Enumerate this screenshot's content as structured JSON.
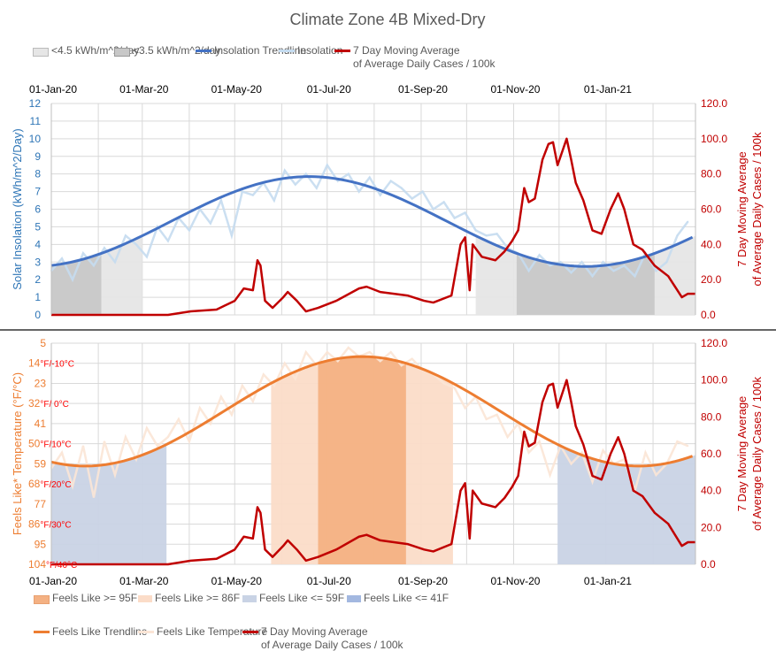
{
  "chart_data": [
    {
      "type": "line",
      "title": "Climate Zone 4B Mixed-Dry",
      "ylabel": "Solar Insolation (kWh/m^2/Day)",
      "y2label": "7 Day Moving Average of Average Daily Cases / 100k",
      "ylim": [
        0,
        12
      ],
      "y2lim": [
        0,
        120
      ],
      "y_ticks": [
        "0",
        "1",
        "2",
        "3",
        "4",
        "5",
        "6",
        "7",
        "8",
        "9",
        "10",
        "11",
        "12"
      ],
      "y2_ticks": [
        "0.0",
        "20.0",
        "40.0",
        "60.0",
        "80.0",
        "100.0",
        "120.0"
      ],
      "x_ticks": [
        {
          "day": 0,
          "label": "01-Jan-20"
        },
        {
          "day": 60,
          "label": "01-Mar-20"
        },
        {
          "day": 121,
          "label": "01-May-20"
        },
        {
          "day": 182,
          "label": "01-Jul-20"
        },
        {
          "day": 244,
          "label": "01-Sep-20"
        },
        {
          "day": 305,
          "label": "01-Nov-20"
        },
        {
          "day": 366,
          "label": "01-Jan-21"
        }
      ],
      "x_axis_position": "top",
      "grid": true,
      "legend": [
        {
          "label": "<4.5 kWh/m^2/day",
          "color": "#e6e6e6",
          "kind": "box"
        },
        {
          "label": "<3.5 kWh/m^2/day",
          "color": "#c8c8c8",
          "kind": "box"
        },
        {
          "label": "Insolation Trendline",
          "color": "#4472c4",
          "kind": "line"
        },
        {
          "label": "Insolation",
          "color": "#c5dcf0",
          "kind": "line"
        },
        {
          "label": "7 Day Moving Average",
          "label2": "of Average Daily Cases / 100k",
          "color": "#c00000",
          "kind": "line"
        }
      ],
      "trendline": {
        "mean": 5.3,
        "amplitude": 2.55,
        "peak_day": 170
      },
      "thresholds": [
        {
          "below": 4.5,
          "color": "#e6e6e6"
        },
        {
          "below": 3.5,
          "color": "#c8c8c8"
        }
      ],
      "insolation_step_days": 7,
      "insolation": [
        2.5,
        3.2,
        2.0,
        3.5,
        2.8,
        3.8,
        3.0,
        4.5,
        4.0,
        3.3,
        5.0,
        4.2,
        5.5,
        4.8,
        6.0,
        5.2,
        6.5,
        4.5,
        7.0,
        6.8,
        7.5,
        6.5,
        8.2,
        7.4,
        8.0,
        7.2,
        8.5,
        7.6,
        8.0,
        7.0,
        7.8,
        6.8,
        7.6,
        7.2,
        6.6,
        7.0,
        6.0,
        6.4,
        5.5,
        5.8,
        4.8,
        4.5,
        4.6,
        3.8,
        3.5,
        2.5,
        3.4,
        2.8,
        3.0,
        2.4,
        3.0,
        2.2,
        3.0,
        2.5,
        2.8,
        2.2,
        3.5,
        2.5,
        3.0,
        4.5,
        5.3
      ]
    },
    {
      "type": "line",
      "ylabel": "Feels Like* Temperature (°F/°C)",
      "y2label": "7 Day Moving Average of Average Daily Cases / 100k",
      "ylim": [
        5,
        104
      ],
      "y2lim": [
        0,
        120
      ],
      "y_ticks": [
        {
          "f": "104",
          "c": "°F/40°C"
        },
        {
          "f": "95",
          "c": ""
        },
        {
          "f": "86",
          "c": "°F/30°C"
        },
        {
          "f": "77",
          "c": ""
        },
        {
          "f": "68",
          "c": "°F/20°C"
        },
        {
          "f": "59",
          "c": ""
        },
        {
          "f": "50",
          "c": "°F/10°C"
        },
        {
          "f": "41",
          "c": ""
        },
        {
          "f": "32",
          "c": "°F/ 0°C"
        },
        {
          "f": "23",
          "c": ""
        },
        {
          "f": "14",
          "c": "°F/-10°C"
        },
        {
          "f": "5",
          "c": ""
        }
      ],
      "y2_ticks": [
        "0.0",
        "20.0",
        "40.0",
        "60.0",
        "80.0",
        "100.0",
        "120.0"
      ],
      "x_ticks": [
        {
          "day": 0,
          "label": "01-Jan-20"
        },
        {
          "day": 60,
          "label": "01-Mar-20"
        },
        {
          "day": 121,
          "label": "01-May-20"
        },
        {
          "day": 182,
          "label": "01-Jul-20"
        },
        {
          "day": 244,
          "label": "01-Sep-20"
        },
        {
          "day": 305,
          "label": "01-Nov-20"
        },
        {
          "day": 366,
          "label": "01-Jan-21"
        }
      ],
      "grid": true,
      "legend": [
        {
          "label": "Feels Like >= 95F",
          "color": "#f4b183",
          "kind": "box"
        },
        {
          "label": "Feels Like >= 86F",
          "color": "#fbdcc8",
          "kind": "box"
        },
        {
          "label": "Feels Like <= 59F",
          "color": "#c9d3e5",
          "kind": "box"
        },
        {
          "label": "Feels Like <= 41F",
          "color": "#a3b8e0",
          "kind": "box"
        },
        {
          "label": "Feels Like Trendline",
          "color": "#ed7d31",
          "kind": "line"
        },
        {
          "label": "Feels Like Temperature",
          "color": "#fbe5d6",
          "kind": "line"
        },
        {
          "label": "7 Day Moving Average",
          "label2": "of Average Daily Cases / 100k",
          "color": "#c00000",
          "kind": "line"
        }
      ],
      "trendline": {
        "mean": 73.5,
        "amplitude": 24.5,
        "peak_day": 205
      },
      "thresholds": [
        {
          "above": 86,
          "color": "#fbdcc8"
        },
        {
          "above": 95,
          "color": "#f4b183"
        },
        {
          "below": 59,
          "color": "#c9d3e5"
        },
        {
          "below": 41,
          "color": "#a3b8e0"
        }
      ],
      "feels_like_step_days": 7,
      "feels_like": [
        48,
        55,
        40,
        58,
        35,
        60,
        45,
        62,
        52,
        66,
        58,
        62,
        70,
        60,
        75,
        68,
        80,
        72,
        85,
        78,
        90,
        85,
        95,
        88,
        100,
        94,
        100,
        96,
        102,
        98,
        100,
        96,
        100,
        94,
        97,
        92,
        90,
        86,
        84,
        75,
        80,
        70,
        72,
        62,
        68,
        55,
        60,
        45,
        58,
        50,
        55,
        42,
        56,
        50,
        52,
        38,
        55,
        45,
        50,
        60,
        58
      ]
    }
  ],
  "cases": [
    [
      0,
      0
    ],
    [
      77,
      0
    ],
    [
      92,
      2
    ],
    [
      109,
      3
    ],
    [
      121,
      8
    ],
    [
      127,
      15
    ],
    [
      133,
      14
    ],
    [
      136,
      31
    ],
    [
      138,
      28
    ],
    [
      141,
      8
    ],
    [
      146,
      4
    ],
    [
      153,
      10
    ],
    [
      156,
      13
    ],
    [
      162,
      8
    ],
    [
      168,
      2
    ],
    [
      176,
      4
    ],
    [
      188,
      8
    ],
    [
      203,
      15
    ],
    [
      208,
      16
    ],
    [
      217,
      13
    ],
    [
      235,
      11
    ],
    [
      246,
      8
    ],
    [
      252,
      7
    ],
    [
      264,
      11
    ],
    [
      270,
      40
    ],
    [
      273,
      44
    ],
    [
      276,
      14
    ],
    [
      278,
      40
    ],
    [
      284,
      33
    ],
    [
      293,
      31
    ],
    [
      299,
      36
    ],
    [
      304,
      42
    ],
    [
      308,
      48
    ],
    [
      312,
      72
    ],
    [
      315,
      64
    ],
    [
      319,
      66
    ],
    [
      324,
      88
    ],
    [
      328,
      97
    ],
    [
      331,
      98
    ],
    [
      334,
      85
    ],
    [
      340,
      100
    ],
    [
      343,
      88
    ],
    [
      346,
      75
    ],
    [
      351,
      65
    ],
    [
      357,
      48
    ],
    [
      363,
      46
    ],
    [
      369,
      60
    ],
    [
      374,
      69
    ],
    [
      378,
      60
    ],
    [
      384,
      40
    ],
    [
      390,
      37
    ],
    [
      398,
      28
    ],
    [
      407,
      22
    ],
    [
      416,
      10
    ],
    [
      420,
      12
    ],
    [
      425,
      12
    ]
  ],
  "last_day": 425
}
